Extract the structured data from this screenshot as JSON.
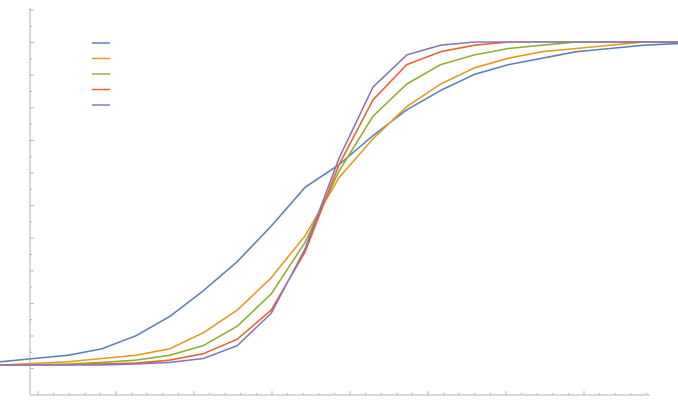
{
  "chart_data": {
    "type": "line",
    "title": "",
    "xlabel": "",
    "ylabel": "",
    "xlim": [
      0,
      20
    ],
    "ylim": [
      0,
      1
    ],
    "grid": false,
    "legend": {
      "placement": "top-left",
      "labels_visible": false
    },
    "series": [
      {
        "color": "#5e81b5",
        "x": [
          0,
          1,
          2,
          3,
          4,
          5,
          6,
          7,
          8,
          9,
          10,
          11,
          12,
          13,
          14,
          15,
          16,
          17,
          18,
          19,
          20
        ],
        "y": [
          0.01,
          0.02,
          0.03,
          0.05,
          0.09,
          0.15,
          0.23,
          0.32,
          0.43,
          0.55,
          0.62,
          0.71,
          0.79,
          0.85,
          0.9,
          0.93,
          0.95,
          0.97,
          0.98,
          0.99,
          0.995
        ]
      },
      {
        "color": "#e19c24",
        "x": [
          0,
          1,
          2,
          3,
          4,
          5,
          6,
          7,
          8,
          9,
          10,
          11,
          12,
          13,
          14,
          15,
          16,
          17,
          18,
          19,
          20
        ],
        "y": [
          0.0,
          0.005,
          0.01,
          0.02,
          0.03,
          0.05,
          0.1,
          0.17,
          0.27,
          0.4,
          0.58,
          0.7,
          0.8,
          0.87,
          0.92,
          0.95,
          0.97,
          0.98,
          0.99,
          1.0,
          1.0
        ]
      },
      {
        "color": "#8fb032",
        "x": [
          0,
          1,
          2,
          3,
          4,
          5,
          6,
          7,
          8,
          9,
          10,
          11,
          12,
          13,
          14,
          15,
          16,
          17,
          18,
          19,
          20
        ],
        "y": [
          0.0,
          0.0,
          0.003,
          0.008,
          0.015,
          0.03,
          0.06,
          0.12,
          0.22,
          0.38,
          0.6,
          0.77,
          0.87,
          0.93,
          0.96,
          0.98,
          0.99,
          1.0,
          1.0,
          1.0,
          1.0
        ]
      },
      {
        "color": "#eb6235",
        "x": [
          0,
          1,
          2,
          3,
          4,
          5,
          6,
          7,
          8,
          9,
          10,
          11,
          12,
          13,
          14,
          15,
          16,
          17,
          18,
          19,
          20
        ],
        "y": [
          0.0,
          0.0,
          0.0,
          0.003,
          0.006,
          0.015,
          0.035,
          0.08,
          0.17,
          0.35,
          0.62,
          0.82,
          0.93,
          0.97,
          0.99,
          1.0,
          1.0,
          1.0,
          1.0,
          1.0,
          1.0
        ]
      },
      {
        "color": "#8778b3",
        "x": [
          0,
          1,
          2,
          3,
          4,
          5,
          6,
          7,
          8,
          9,
          10,
          11,
          12,
          13,
          14,
          15,
          16,
          17,
          18,
          19,
          20
        ],
        "y": [
          0.0,
          0.0,
          0.0,
          0.0,
          0.003,
          0.008,
          0.02,
          0.06,
          0.16,
          0.36,
          0.64,
          0.86,
          0.96,
          0.99,
          1.0,
          1.0,
          1.0,
          1.0,
          1.0,
          1.0,
          1.0
        ]
      }
    ]
  }
}
